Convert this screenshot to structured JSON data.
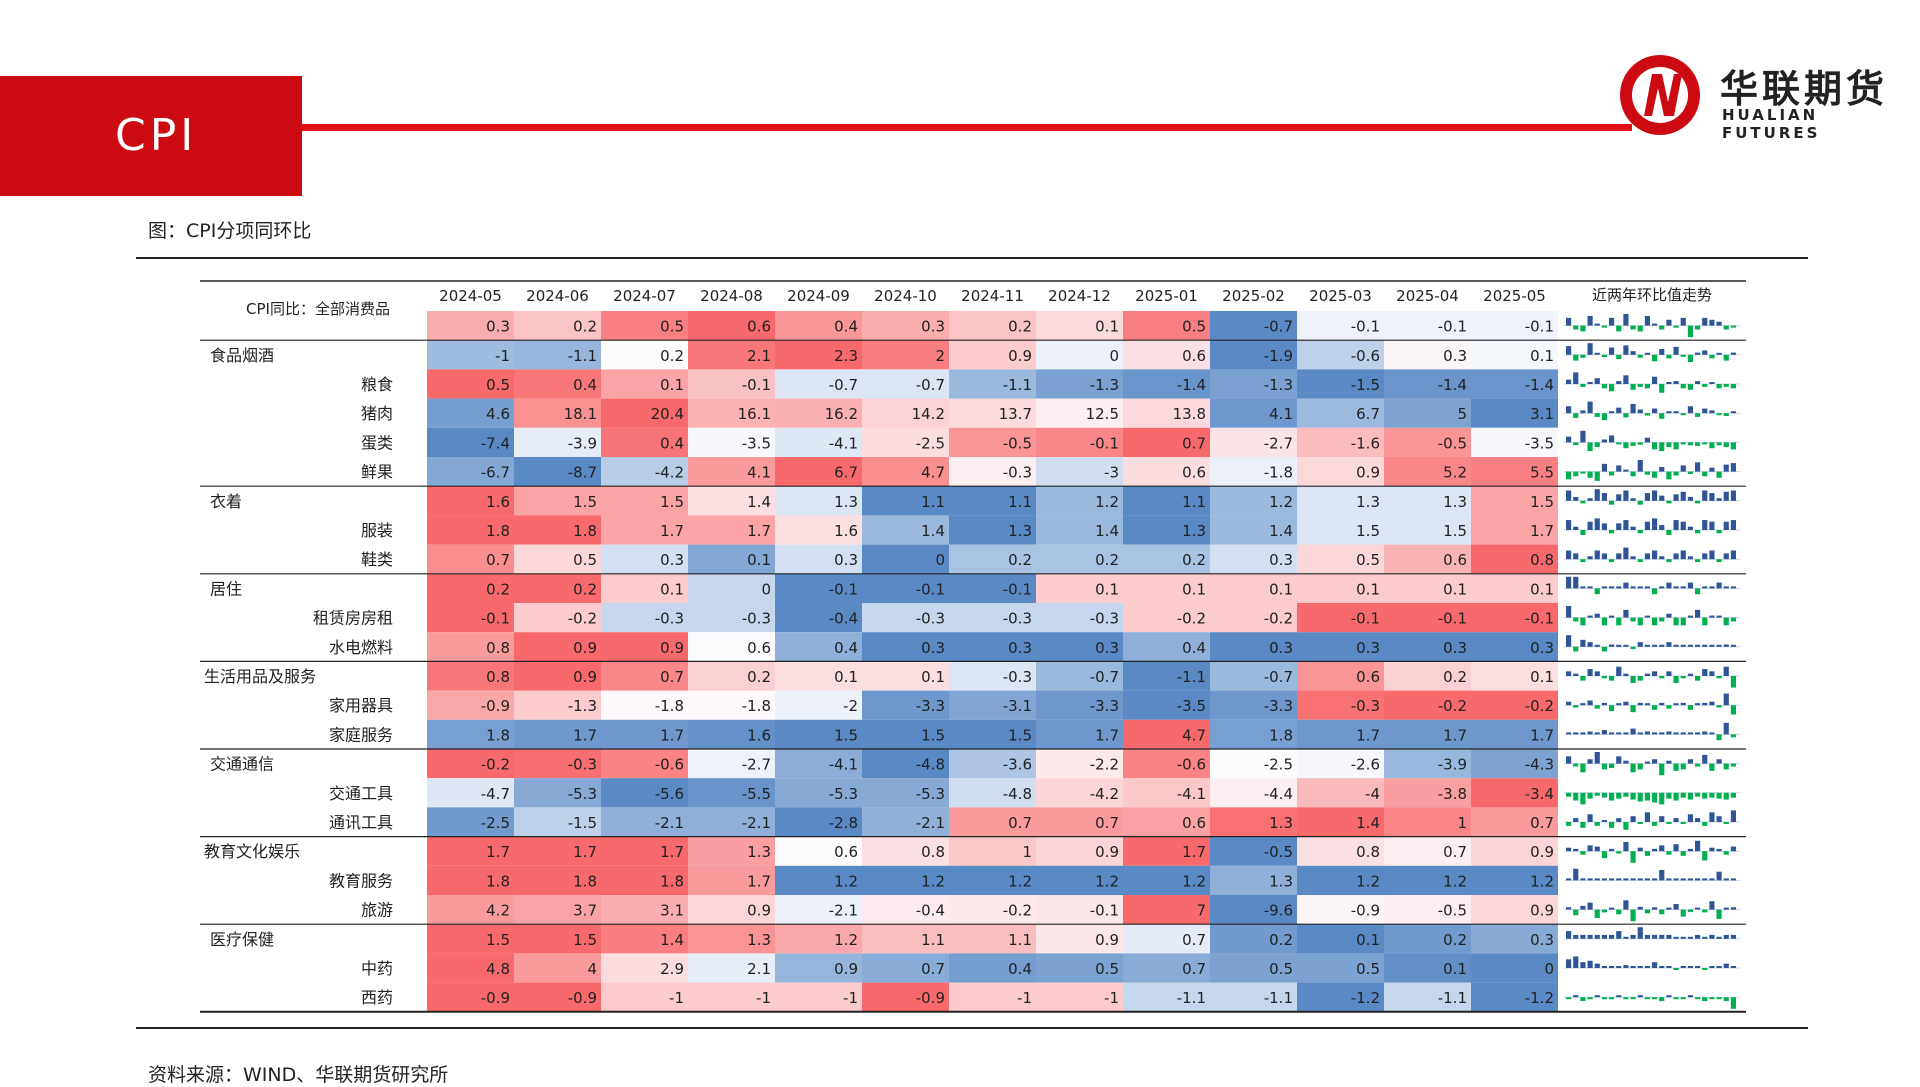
{
  "header": {
    "title": "CPI"
  },
  "logo": {
    "cn": "华联期货",
    "en": "HUALIAN FUTURES"
  },
  "figure_title": "图：CPI分项同环比",
  "source": "资料来源：WIND、华联期货研究所",
  "colors": {
    "brand_red": "#cc0a12",
    "heat_red": "#f8696b",
    "heat_blue": "#5a8ac6",
    "spark_pos": "#2f5597",
    "spark_neg": "#00b050"
  },
  "chart_data": {
    "type": "heatmap",
    "title": "CPI分项同环比",
    "corner_label": "CPI同比：全部消费品",
    "trend_header": "近两年环比值走势",
    "columns": [
      "2024-05",
      "2024-06",
      "2024-07",
      "2024-08",
      "2024-09",
      "2024-10",
      "2024-11",
      "2024-12",
      "2025-01",
      "2025-02",
      "2025-03",
      "2025-04",
      "2025-05"
    ],
    "rows": [
      {
        "label": "",
        "indent": 0,
        "values": [
          0.3,
          0.2,
          0.5,
          0.6,
          0.4,
          0.3,
          0.2,
          0.1,
          0.5,
          -0.7,
          -0.1,
          -0.1,
          -0.1
        ]
      },
      {
        "label": "食品烟酒",
        "indent": 0,
        "values": [
          -1,
          -1.1,
          0.2,
          2.1,
          2.3,
          2,
          0.9,
          0,
          0.6,
          -1.9,
          -0.6,
          0.3,
          0.1
        ]
      },
      {
        "label": "粮食",
        "indent": 1,
        "values": [
          0.5,
          0.4,
          0.1,
          -0.1,
          -0.7,
          -0.7,
          -1.1,
          -1.3,
          -1.4,
          -1.3,
          -1.5,
          -1.4,
          -1.4
        ]
      },
      {
        "label": "猪肉",
        "indent": 1,
        "values": [
          4.6,
          18.1,
          20.4,
          16.1,
          16.2,
          14.2,
          13.7,
          12.5,
          13.8,
          4.1,
          6.7,
          5,
          3.1
        ]
      },
      {
        "label": "蛋类",
        "indent": 1,
        "values": [
          -7.4,
          -3.9,
          0.4,
          -3.5,
          -4.1,
          -2.5,
          -0.5,
          -0.1,
          0.7,
          -2.7,
          -1.6,
          -0.5,
          -3.5
        ]
      },
      {
        "label": "鲜果",
        "indent": 1,
        "values": [
          -6.7,
          -8.7,
          -4.2,
          4.1,
          6.7,
          4.7,
          -0.3,
          -3,
          0.6,
          -1.8,
          0.9,
          5.2,
          5.5
        ]
      },
      {
        "label": "衣着",
        "indent": 0,
        "values": [
          1.6,
          1.5,
          1.5,
          1.4,
          1.3,
          1.1,
          1.1,
          1.2,
          1.1,
          1.2,
          1.3,
          1.3,
          1.5
        ]
      },
      {
        "label": "服装",
        "indent": 1,
        "values": [
          1.8,
          1.8,
          1.7,
          1.7,
          1.6,
          1.4,
          1.3,
          1.4,
          1.3,
          1.4,
          1.5,
          1.5,
          1.7
        ]
      },
      {
        "label": "鞋类",
        "indent": 1,
        "values": [
          0.7,
          0.5,
          0.3,
          0.1,
          0.3,
          0,
          0.2,
          0.2,
          0.2,
          0.3,
          0.5,
          0.6,
          0.8
        ]
      },
      {
        "label": "居住",
        "indent": 0,
        "values": [
          0.2,
          0.2,
          0.1,
          0,
          -0.1,
          -0.1,
          -0.1,
          0.1,
          0.1,
          0.1,
          0.1,
          0.1,
          0.1
        ]
      },
      {
        "label": "租赁房房租",
        "indent": 1,
        "values": [
          -0.1,
          -0.2,
          -0.3,
          -0.3,
          -0.4,
          -0.3,
          -0.3,
          -0.3,
          -0.2,
          -0.2,
          -0.1,
          -0.1,
          -0.1
        ]
      },
      {
        "label": "水电燃料",
        "indent": 1,
        "values": [
          0.8,
          0.9,
          0.9,
          0.6,
          0.4,
          0.3,
          0.3,
          0.3,
          0.4,
          0.3,
          0.3,
          0.3,
          0.3
        ]
      },
      {
        "label": "生活用品及服务",
        "indent": 0,
        "values": [
          0.8,
          0.9,
          0.7,
          0.2,
          0.1,
          0.1,
          -0.3,
          -0.7,
          -1.1,
          -0.7,
          0.6,
          0.2,
          0.1
        ]
      },
      {
        "label": "家用器具",
        "indent": 1,
        "values": [
          -0.9,
          -1.3,
          -1.8,
          -1.8,
          -2,
          -3.3,
          -3.1,
          -3.3,
          -3.5,
          -3.3,
          -0.3,
          -0.2,
          -0.2
        ]
      },
      {
        "label": "家庭服务",
        "indent": 1,
        "values": [
          1.8,
          1.7,
          1.7,
          1.6,
          1.5,
          1.5,
          1.5,
          1.7,
          4.7,
          1.8,
          1.7,
          1.7,
          1.7
        ]
      },
      {
        "label": "交通通信",
        "indent": 0,
        "values": [
          -0.2,
          -0.3,
          -0.6,
          -2.7,
          -4.1,
          -4.8,
          -3.6,
          -2.2,
          -0.6,
          -2.5,
          -2.6,
          -3.9,
          -4.3
        ]
      },
      {
        "label": "交通工具",
        "indent": 1,
        "values": [
          -4.7,
          -5.3,
          -5.6,
          -5.5,
          -5.3,
          -5.3,
          -4.8,
          -4.2,
          -4.1,
          -4.4,
          -4,
          -3.8,
          -3.4
        ]
      },
      {
        "label": "通讯工具",
        "indent": 1,
        "values": [
          -2.5,
          -1.5,
          -2.1,
          -2.1,
          -2.8,
          -2.1,
          0.7,
          0.7,
          0.6,
          1.3,
          1.4,
          1,
          0.7
        ]
      },
      {
        "label": "教育文化娱乐",
        "indent": 0,
        "values": [
          1.7,
          1.7,
          1.7,
          1.3,
          0.6,
          0.8,
          1,
          0.9,
          1.7,
          -0.5,
          0.8,
          0.7,
          0.9
        ]
      },
      {
        "label": "教育服务",
        "indent": 1,
        "values": [
          1.8,
          1.8,
          1.8,
          1.7,
          1.2,
          1.2,
          1.2,
          1.2,
          1.2,
          1.3,
          1.2,
          1.2,
          1.2
        ]
      },
      {
        "label": "旅游",
        "indent": 1,
        "values": [
          4.2,
          3.7,
          3.1,
          0.9,
          -2.1,
          -0.4,
          -0.2,
          -0.1,
          7,
          -9.6,
          -0.9,
          -0.5,
          0.9
        ]
      },
      {
        "label": "医疗保健",
        "indent": 0,
        "values": [
          1.5,
          1.5,
          1.4,
          1.3,
          1.2,
          1.1,
          1.1,
          0.9,
          0.7,
          0.2,
          0.1,
          0.2,
          0.3
        ]
      },
      {
        "label": "中药",
        "indent": 1,
        "values": [
          4.8,
          4,
          2.9,
          2.1,
          0.9,
          0.7,
          0.4,
          0.5,
          0.7,
          0.5,
          0.5,
          0.1,
          0
        ]
      },
      {
        "label": "西药",
        "indent": 1,
        "values": [
          -0.9,
          -0.9,
          -1,
          -1,
          -1,
          -0.9,
          -1,
          -1,
          -1.1,
          -1.1,
          -1.2,
          -1.1,
          -1.2
        ]
      }
    ],
    "group_starts": [
      1,
      6,
      9,
      12,
      15,
      18,
      21
    ],
    "trend_mom": [
      [
        0.4,
        -0.2,
        -0.3,
        0.5,
        0.1,
        -0.1,
        0.4,
        -0.3,
        0.6,
        -0.2,
        -0.3,
        0.5,
        0.1,
        -0.2,
        0.3,
        -0.1,
        0.4,
        -0.6,
        -0.2,
        0.4,
        0.3,
        0.2,
        -0.2,
        -0.1
      ],
      [
        1.2,
        -0.8,
        -0.4,
        1.6,
        0.2,
        -0.3,
        1.0,
        -0.6,
        1.3,
        0.5,
        -0.4,
        0.2,
        -0.9,
        0.8,
        -0.5,
        1.1,
        -0.2,
        -1.0,
        0.3,
        0.6,
        -0.5,
        0.2,
        -0.8,
        0.3
      ],
      [
        0.3,
        0.8,
        -0.2,
        0.1,
        0.4,
        -0.3,
        -0.5,
        0.2,
        0.6,
        -0.4,
        -0.2,
        -0.3,
        0.5,
        -0.6,
        0.1,
        0.2,
        -0.3,
        -0.4,
        0.2,
        -0.2,
        0.1,
        -0.3,
        -0.2,
        -0.3
      ],
      [
        1.5,
        -1.0,
        0.6,
        2.5,
        -0.8,
        -1.5,
        0.3,
        1.2,
        -0.9,
        2.0,
        0.8,
        -0.5,
        1.0,
        -1.2,
        0.4,
        0.2,
        -0.3,
        1.5,
        -0.8,
        1.0,
        0.6,
        -0.4,
        -0.6,
        0.3
      ],
      [
        1.0,
        -0.5,
        2.0,
        -1.5,
        -0.8,
        0.5,
        1.2,
        -0.3,
        -1.0,
        -0.6,
        -0.4,
        0.8,
        -1.2,
        -1.5,
        -0.8,
        -1.2,
        -0.2,
        -0.5,
        -0.6,
        -0.3,
        -1.0,
        -0.5,
        -0.8,
        -1.2
      ],
      [
        -1.0,
        -0.6,
        -0.2,
        -0.8,
        -1.2,
        1.0,
        -0.5,
        0.8,
        0.2,
        -0.6,
        1.5,
        -0.4,
        -0.8,
        0.6,
        -1.0,
        -0.5,
        0.8,
        -0.3,
        1.2,
        -0.6,
        0.5,
        -0.8,
        0.9,
        1.1
      ],
      [
        0.8,
        0.3,
        -0.2,
        0.2,
        0.9,
        0.6,
        -0.3,
        0.5,
        0.8,
        0.2,
        -0.3,
        0.6,
        0.8,
        0.4,
        -0.2,
        0.5,
        0.7,
        0.3,
        -0.2,
        0.8,
        0.6,
        0.2,
        0.7,
        0.8
      ],
      [
        0.6,
        0.2,
        -0.3,
        0.5,
        0.7,
        0.4,
        -0.2,
        0.4,
        0.6,
        0.2,
        -0.2,
        0.5,
        0.7,
        0.3,
        -0.3,
        0.6,
        0.5,
        0.2,
        -0.2,
        0.6,
        0.5,
        -0.2,
        0.5,
        0.6
      ],
      [
        0.3,
        0.2,
        -0.1,
        0.1,
        0.3,
        0.2,
        -0.1,
        0.2,
        0.4,
        0.1,
        -0.1,
        0.2,
        0.3,
        0.1,
        -0.1,
        0.2,
        0.3,
        0.1,
        -0.1,
        0.2,
        0.3,
        -0.1,
        0.2,
        0.3
      ],
      [
        0.4,
        0.4,
        0,
        0,
        -0.2,
        0,
        0,
        0,
        0.2,
        0,
        0,
        0,
        -0.2,
        0,
        0.2,
        0,
        0,
        0.2,
        -0.2,
        0,
        0,
        0.2,
        0,
        0
      ],
      [
        0.3,
        -0.1,
        -0.2,
        0,
        0.1,
        -0.2,
        0,
        -0.2,
        0.2,
        -0.1,
        -0.2,
        0,
        -0.2,
        -0.1,
        0.1,
        -0.2,
        -0.2,
        0,
        0.2,
        -0.2,
        0,
        0,
        -0.2,
        -0.1
      ],
      [
        0.5,
        -0.2,
        0.3,
        0.2,
        0,
        -0.2,
        0.1,
        0,
        0,
        -0.1,
        0.2,
        0,
        0,
        0,
        0.2,
        0,
        0,
        0,
        0,
        0,
        0,
        0,
        0.1,
        0
      ],
      [
        0.2,
        0.1,
        -0.2,
        0.3,
        0.2,
        -0.1,
        -0.2,
        0.4,
        0.1,
        -0.3,
        -0.2,
        0.1,
        0.2,
        -0.1,
        0.2,
        -0.3,
        -0.1,
        0.1,
        -0.2,
        0.3,
        0.2,
        -0.1,
        0.4,
        -0.5
      ],
      [
        0.3,
        -0.2,
        0.1,
        0.4,
        -0.3,
        0.2,
        -0.5,
        0.1,
        0.3,
        -0.6,
        0.2,
        0.1,
        -0.4,
        0.2,
        -0.3,
        0.1,
        0.2,
        -0.4,
        0.1,
        0.2,
        0.3,
        -0.2,
        1.0,
        -0.8
      ],
      [
        0.1,
        0.1,
        0.1,
        0.2,
        0.1,
        0.3,
        0.1,
        0.1,
        0,
        0.4,
        0.1,
        0.2,
        0.1,
        0.1,
        0.2,
        0,
        0.1,
        0.1,
        0.1,
        0.2,
        0,
        -0.4,
        0.8,
        -0.2
      ],
      [
        0.5,
        -0.2,
        -0.6,
        0.3,
        0.8,
        -0.4,
        -0.3,
        0.5,
        0.2,
        -0.6,
        -0.4,
        0.1,
        0.3,
        -0.8,
        0.2,
        -0.5,
        -0.4,
        0.3,
        -0.2,
        0.6,
        -0.5,
        0.3,
        -0.4,
        -0.2
      ],
      [
        -0.4,
        -0.8,
        -1.2,
        -0.6,
        -0.3,
        -0.5,
        -0.8,
        -0.6,
        -0.4,
        -0.7,
        -0.9,
        -0.8,
        -1.0,
        -1.2,
        -0.6,
        -0.8,
        -0.5,
        -0.7,
        -0.4,
        -0.6,
        -0.5,
        -0.6,
        -0.7,
        -0.5
      ],
      [
        -0.2,
        0.2,
        -0.3,
        0.4,
        -0.2,
        0.1,
        -0.3,
        0.2,
        -0.4,
        0.3,
        -0.1,
        0.5,
        -0.2,
        0.3,
        -0.1,
        0.2,
        -0.1,
        0.4,
        0.2,
        -0.2,
        0.5,
        0.3,
        -0.1,
        0.6
      ],
      [
        0.3,
        0.2,
        -0.3,
        0.5,
        0.4,
        -0.6,
        0.2,
        -0.2,
        0.8,
        -1.0,
        0.3,
        -0.4,
        0.2,
        0.5,
        -0.3,
        0.6,
        -0.4,
        0.2,
        0.9,
        -0.8,
        0.3,
        0.2,
        -0.3,
        0.4
      ],
      [
        0,
        2.0,
        0,
        0,
        0,
        0,
        0,
        0,
        0.3,
        0,
        0,
        0,
        0,
        1.8,
        0,
        0,
        0,
        0,
        0,
        0,
        0.2,
        1.5,
        0,
        0
      ],
      [
        0.5,
        -1.2,
        0.8,
        1.5,
        -1.8,
        -0.6,
        0.4,
        -1.0,
        2.0,
        -2.5,
        0.6,
        -0.8,
        0.5,
        -1.0,
        0.3,
        1.2,
        -1.5,
        -0.5,
        0.2,
        -0.6,
        1.8,
        -2.0,
        0.4,
        0.5
      ],
      [
        0.2,
        0.1,
        0.1,
        0.1,
        0.1,
        0.1,
        0.1,
        0.2,
        0,
        0.1,
        0.3,
        0.1,
        0.1,
        0.1,
        0.1,
        0,
        0,
        0,
        0.1,
        0,
        0.1,
        0,
        0.1,
        0.1
      ],
      [
        0.6,
        0.8,
        0.4,
        0.5,
        0.3,
        0.1,
        0,
        0,
        0.2,
        0,
        0.1,
        0,
        0.4,
        0.1,
        0,
        -0.1,
        0,
        0,
        0.1,
        -0.1,
        0,
        0,
        0.3,
        0.1
      ],
      [
        -0.1,
        0,
        -0.2,
        -0.1,
        0,
        -0.1,
        -0.1,
        0,
        -0.1,
        -0.1,
        0,
        -0.1,
        -0.1,
        -0.2,
        0,
        -0.1,
        -0.1,
        0,
        -0.1,
        -0.2,
        -0.1,
        -0.1,
        -0.2,
        -0.6
      ]
    ]
  }
}
